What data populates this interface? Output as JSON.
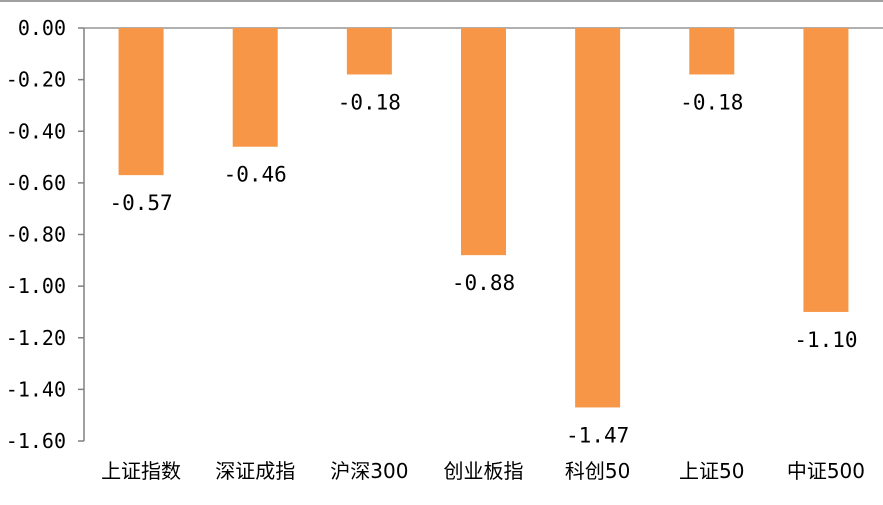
{
  "chart_data": {
    "type": "bar",
    "title": "",
    "xlabel": "",
    "ylabel": "",
    "categories": [
      "上证指数",
      "深证成指",
      "沪深300",
      "创业板指",
      "科创50",
      "上证50",
      "中证500"
    ],
    "values": [
      -0.57,
      -0.46,
      -0.18,
      -0.88,
      -1.47,
      -0.18,
      -1.1
    ],
    "data_labels": [
      "-0.57",
      "-0.46",
      "-0.18",
      "-0.88",
      "-1.47",
      "-0.18",
      "-1.10"
    ],
    "yticks": [
      0.0,
      -0.2,
      -0.4,
      -0.6,
      -0.8,
      -1.0,
      -1.2,
      -1.4,
      -1.6
    ],
    "ytick_labels": [
      "0.00",
      "-0.20",
      "-0.40",
      "-0.60",
      "-0.80",
      "-1.00",
      "-1.20",
      "-1.40",
      "-1.60"
    ],
    "ylim": [
      -1.6,
      0.0
    ],
    "grid": false,
    "legend": "none",
    "colors": {
      "bar": "#F79646",
      "axis": "#808080"
    }
  }
}
